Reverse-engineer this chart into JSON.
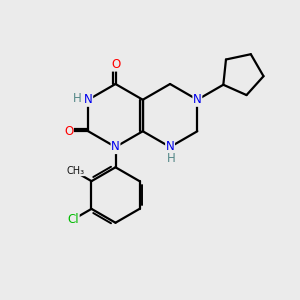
{
  "bg_color": "#ebebeb",
  "bond_color": "#000000",
  "bond_width": 1.6,
  "atom_colors": {
    "N": "#0000ee",
    "O": "#ff0000",
    "Cl": "#00bb00",
    "C": "#000000",
    "H": "#558888"
  },
  "font_size": 8.5,
  "fig_size": [
    3.0,
    3.0
  ],
  "dpi": 100
}
